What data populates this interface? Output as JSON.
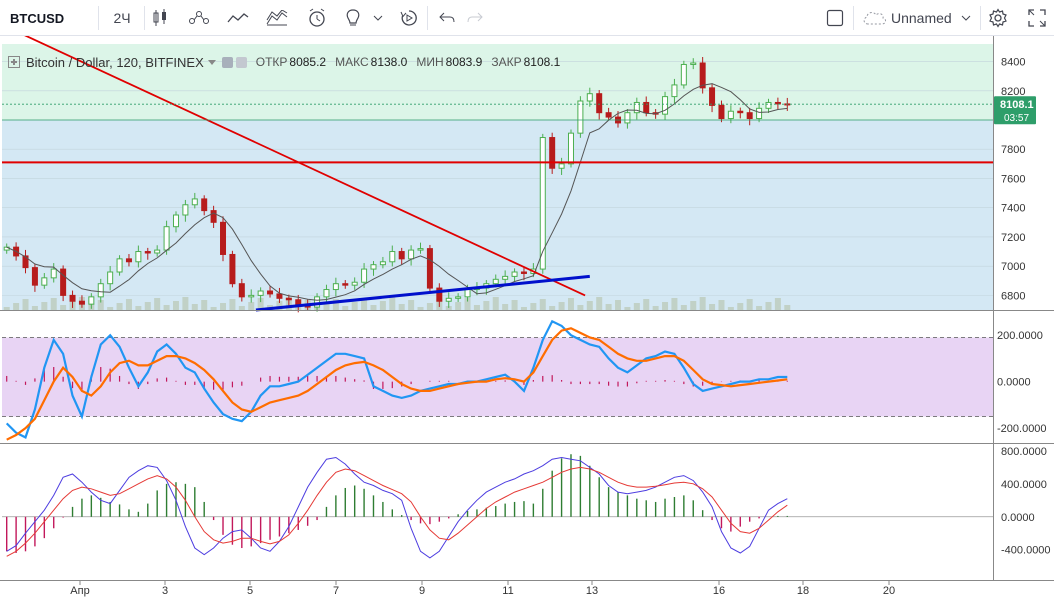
{
  "toolbar": {
    "symbol": "BTCUSD",
    "interval": "2Ч",
    "layout_name": "Unnamed"
  },
  "legend": {
    "title": "Bitcoin / Dollar, 120, BITFINEX",
    "open_label": "ОТКР",
    "open": "8085.2",
    "high_label": "МАКС",
    "high": "8138.0",
    "low_label": "МИН",
    "low": "8083.9",
    "close_label": "ЗАКР",
    "close": "8108.1"
  },
  "colors": {
    "up": "#4caf50",
    "down": "#b71c1c",
    "resistance": "#e00000",
    "trendline_blue": "#0010cc",
    "sma": "#555555",
    "k_line": "#2196f3",
    "d_line": "#ff6d00",
    "price_tag": "#2e9e6a"
  },
  "chart_data": [
    {
      "type": "candlestick",
      "title": "Bitcoin / Dollar, 120, BITFINEX",
      "ylim": [
        6700,
        8520
      ],
      "yticks": [
        6800,
        7000,
        7200,
        7400,
        7600,
        7800,
        8000,
        8200,
        8400
      ],
      "x_tick_labels": [
        "Апр",
        "3",
        "5",
        "7",
        "9",
        "11",
        "13",
        "16",
        "18",
        "20"
      ],
      "last_price": "8108.1",
      "countdown": "03:57",
      "horizontal_level": 7710,
      "close_series": [
        7130,
        7070,
        6990,
        6870,
        6920,
        6980,
        6800,
        6760,
        6740,
        6790,
        6880,
        6960,
        7050,
        7030,
        7100,
        7090,
        7110,
        7270,
        7350,
        7420,
        7460,
        7380,
        7300,
        7080,
        6880,
        6790,
        6800,
        6830,
        6810,
        6780,
        6770,
        6730,
        6720,
        6790,
        6840,
        6880,
        6870,
        6890,
        6980,
        7010,
        7030,
        7100,
        7050,
        7110,
        7120,
        6850,
        6760,
        6780,
        6790,
        6840,
        6850,
        6880,
        6910,
        6930,
        6960,
        6950,
        6980,
        7880,
        7670,
        7700,
        7910,
        8130,
        8180,
        8050,
        8020,
        7980,
        8050,
        8120,
        8050,
        8040,
        8160,
        8240,
        8380,
        8390,
        8220,
        8100,
        8010,
        8060,
        8050,
        8010,
        8080,
        8120,
        8110,
        8108
      ],
      "annotations": [
        {
          "type": "trendline",
          "color": "red",
          "from": [
            0.4,
            8640
          ],
          "to": [
            62.0,
            6800
          ]
        },
        {
          "type": "trendline",
          "color": "blue",
          "from": [
            27.0,
            6700
          ],
          "to": [
            62.5,
            6930
          ]
        }
      ]
    },
    {
      "type": "line",
      "name": "stochastic RSI",
      "yticks": [
        200,
        0,
        -200
      ],
      "ylim": [
        -260,
        300
      ],
      "bands": [
        -150,
        190
      ],
      "k_series": [
        -180,
        -220,
        -240,
        -120,
        60,
        180,
        120,
        -60,
        -150,
        20,
        160,
        200,
        150,
        60,
        -20,
        40,
        130,
        160,
        120,
        60,
        40,
        -30,
        -90,
        -140,
        -160,
        -170,
        -130,
        -60,
        -20,
        -20,
        -10,
        0,
        30,
        60,
        90,
        120,
        120,
        110,
        100,
        -20,
        -40,
        -60,
        -70,
        -60,
        -40,
        -30,
        -20,
        -10,
        -10,
        0,
        0,
        10,
        20,
        30,
        0,
        -40,
        60,
        180,
        260,
        240,
        200,
        180,
        160,
        150,
        100,
        60,
        40,
        70,
        100,
        110,
        130,
        120,
        60,
        -10,
        -40,
        -30,
        -20,
        -10,
        0,
        0,
        10,
        10,
        20,
        20
      ],
      "d_series": [
        -250,
        -230,
        -200,
        -160,
        -80,
        0,
        60,
        20,
        -40,
        -60,
        -20,
        40,
        80,
        90,
        70,
        70,
        90,
        110,
        110,
        100,
        80,
        50,
        10,
        -40,
        -90,
        -120,
        -130,
        -110,
        -90,
        -80,
        -70,
        -60,
        -40,
        -10,
        20,
        50,
        70,
        80,
        85,
        70,
        50,
        20,
        -10,
        -30,
        -40,
        -40,
        -30,
        -20,
        -10,
        -5,
        0,
        0,
        10,
        15,
        10,
        0,
        40,
        110,
        180,
        220,
        230,
        210,
        190,
        180,
        150,
        120,
        100,
        90,
        90,
        100,
        110,
        110,
        90,
        50,
        10,
        -10,
        -15,
        -20,
        -15,
        -10,
        -5,
        0,
        5,
        10
      ]
    },
    {
      "type": "line",
      "name": "momentum oscillator",
      "yticks": [
        800,
        400,
        0,
        -400
      ],
      "ylim": [
        -720,
        860
      ],
      "hist": [
        -420,
        -440,
        -420,
        -360,
        -260,
        -140,
        -10,
        120,
        220,
        260,
        230,
        180,
        150,
        90,
        60,
        160,
        320,
        400,
        420,
        400,
        360,
        180,
        -40,
        -220,
        -340,
        -380,
        -360,
        -320,
        -280,
        -240,
        -200,
        -160,
        -110,
        -40,
        120,
        260,
        350,
        380,
        340,
        260,
        180,
        90,
        20,
        -40,
        -80,
        -90,
        -60,
        -20,
        30,
        70,
        90,
        110,
        130,
        160,
        180,
        190,
        160,
        340,
        560,
        710,
        760,
        740,
        620,
        480,
        360,
        300,
        260,
        220,
        200,
        180,
        220,
        240,
        260,
        200,
        80,
        -40,
        -140,
        -180,
        -120,
        -60,
        -20,
        0,
        10,
        10
      ],
      "fast": [
        -420,
        -350,
        -200,
        -60,
        80,
        260,
        480,
        520,
        420,
        300,
        200,
        160,
        320,
        480,
        560,
        620,
        600,
        440,
        200,
        -120,
        -380,
        -460,
        -380,
        -260,
        -180,
        -160,
        -260,
        -380,
        -420,
        -300,
        -120,
        120,
        360,
        540,
        700,
        720,
        640,
        520,
        420,
        380,
        320,
        280,
        200,
        -140,
        -420,
        -500,
        -420,
        -240,
        -60,
        80,
        200,
        300,
        360,
        420,
        460,
        520,
        560,
        620,
        700,
        720,
        700,
        680,
        600,
        520,
        380,
        300,
        280,
        300,
        320,
        360,
        420,
        480,
        500,
        440,
        300,
        120,
        -180,
        -380,
        -440,
        -360,
        -140,
        80,
        160,
        220
      ],
      "slow": [
        -480,
        -420,
        -320,
        -200,
        -60,
        80,
        220,
        320,
        360,
        340,
        300,
        260,
        280,
        340,
        400,
        460,
        500,
        460,
        360,
        200,
        0,
        -180,
        -280,
        -320,
        -300,
        -260,
        -260,
        -300,
        -330,
        -300,
        -220,
        -80,
        80,
        260,
        420,
        540,
        580,
        560,
        500,
        440,
        380,
        330,
        280,
        180,
        0,
        -160,
        -260,
        -280,
        -200,
        -100,
        0,
        100,
        180,
        240,
        300,
        340,
        380,
        420,
        480,
        540,
        580,
        600,
        580,
        540,
        480,
        420,
        380,
        360,
        360,
        370,
        390,
        410,
        420,
        400,
        340,
        240,
        80,
        -80,
        -180,
        -200,
        -140,
        -40,
        60,
        140
      ]
    }
  ]
}
